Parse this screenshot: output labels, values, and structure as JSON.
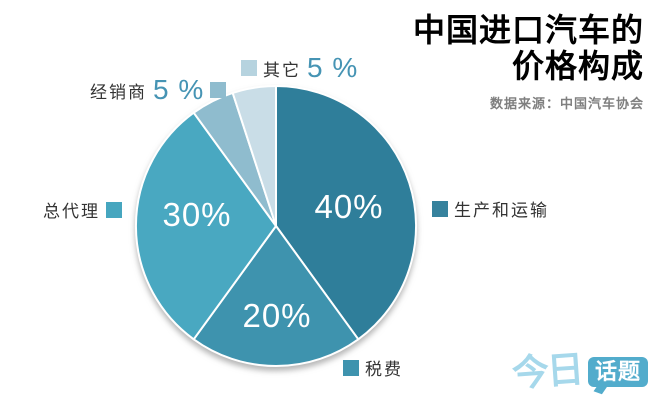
{
  "title": {
    "line1": "中国进口汽车的",
    "line2": "价格构成"
  },
  "source": "数据来源：中国汽车协会",
  "chart_data": {
    "type": "pie",
    "title": "中国进口汽车的价格构成",
    "start_angle": "12-oclock",
    "direction": "clockwise",
    "slices": [
      {
        "label": "生产和运输",
        "value": 40,
        "pct": "40%",
        "color": "#2f7e9a"
      },
      {
        "label": "税费",
        "value": 20,
        "pct": "20%",
        "color": "#3e93ae"
      },
      {
        "label": "总代理",
        "value": 30,
        "pct": "30%",
        "color": "#49a8c1"
      },
      {
        "label": "经销商",
        "value": 5,
        "pct": "5 %",
        "color": "#8fbcce"
      },
      {
        "label": "其它",
        "value": 5,
        "pct": "5 %",
        "color": "#c9dde7"
      }
    ]
  },
  "legend": {
    "qita": {
      "label": "其它",
      "value": "5 %",
      "square": "#b6d3df"
    },
    "jingxiaoshang": {
      "label": "经销商",
      "value": "5 %",
      "square": "#8fbcce"
    },
    "zongdaili": {
      "label": "总代理",
      "square": "#46a6bf"
    },
    "shengchan": {
      "label": "生产和运输",
      "square": "#36829d"
    },
    "shuifei": {
      "label": "税费",
      "square": "#3e93ae"
    }
  },
  "logo": {
    "part1": "今日",
    "part2": "话题"
  },
  "colors": {
    "number_accent": "#4694b4",
    "label_text": "#333333",
    "subtitle_gray": "#7f7f7f",
    "logo_light": "#a6d8eb",
    "logo_bubble": "#52accc"
  }
}
